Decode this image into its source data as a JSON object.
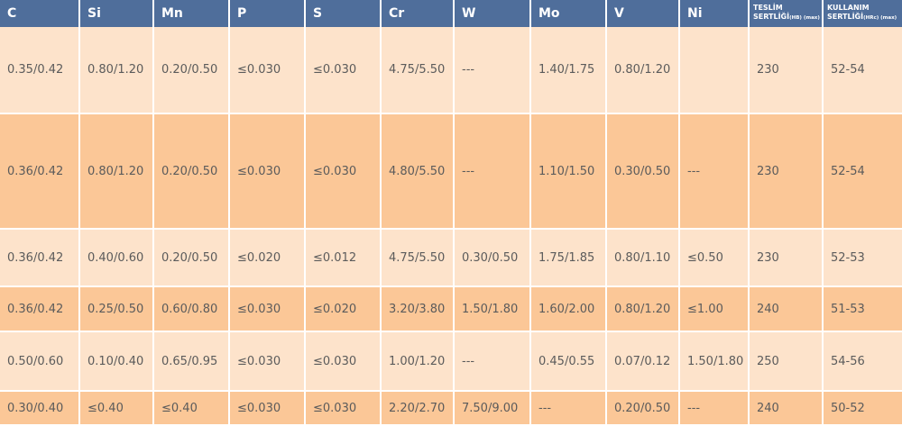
{
  "table": {
    "headers": {
      "c": "C",
      "si": "Si",
      "mn": "Mn",
      "p": "P",
      "s": "S",
      "cr": "Cr",
      "w": "W",
      "mo": "Mo",
      "v": "V",
      "ni": "Ni",
      "delivery_hardness_line1": "TESLİM",
      "delivery_hardness_line2": "SERTLİĞİ",
      "delivery_hardness_unit": "(HB) (max)",
      "working_hardness_line1": "KULLANIM",
      "working_hardness_line2": "SERTLİĞİ",
      "working_hardness_unit": "(HRc) (max)"
    },
    "rows": [
      [
        "0.35/0.42",
        "0.80/1.20",
        "0.20/0.50",
        "≤0.030",
        "≤0.030",
        "4.75/5.50",
        "---",
        "1.40/1.75",
        "0.80/1.20",
        "",
        "230",
        "52-54"
      ],
      [
        "0.36/0.42",
        "0.80/1.20",
        "0.20/0.50",
        "≤0.030",
        "≤0.030",
        "4.80/5.50",
        "---",
        "1.10/1.50",
        "0.30/0.50",
        "---",
        "230",
        "52-54"
      ],
      [
        "0.36/0.42",
        "0.40/0.60",
        "0.20/0.50",
        "≤0.020",
        "≤0.012",
        "4.75/5.50",
        "0.30/0.50",
        "1.75/1.85",
        "0.80/1.10",
        "≤0.50",
        "230",
        "52-53"
      ],
      [
        "0.36/0.42",
        "0.25/0.50",
        "0.60/0.80",
        "≤0.030",
        "≤0.020",
        "3.20/3.80",
        "1.50/1.80",
        "1.60/2.00",
        "0.80/1.20",
        "≤1.00",
        "240",
        "51-53"
      ],
      [
        "0.50/0.60",
        "0.10/0.40",
        "0.65/0.95",
        "≤0.030",
        "≤0.030",
        "1.00/1.20",
        "---",
        "0.45/0.55",
        "0.07/0.12",
        "1.50/1.80",
        "250",
        "54-56"
      ],
      [
        "0.30/0.40",
        "≤0.40",
        "≤0.40",
        "≤0.030",
        "≤0.030",
        "2.20/2.70",
        "7.50/9.00",
        "---",
        "0.20/0.50",
        "---",
        "240",
        "50-52"
      ]
    ]
  },
  "colors": {
    "header_bg": "#4f6e9b",
    "row_light": "#fde3cb",
    "row_dark": "#fbc797",
    "text": "#5b5b5b"
  }
}
